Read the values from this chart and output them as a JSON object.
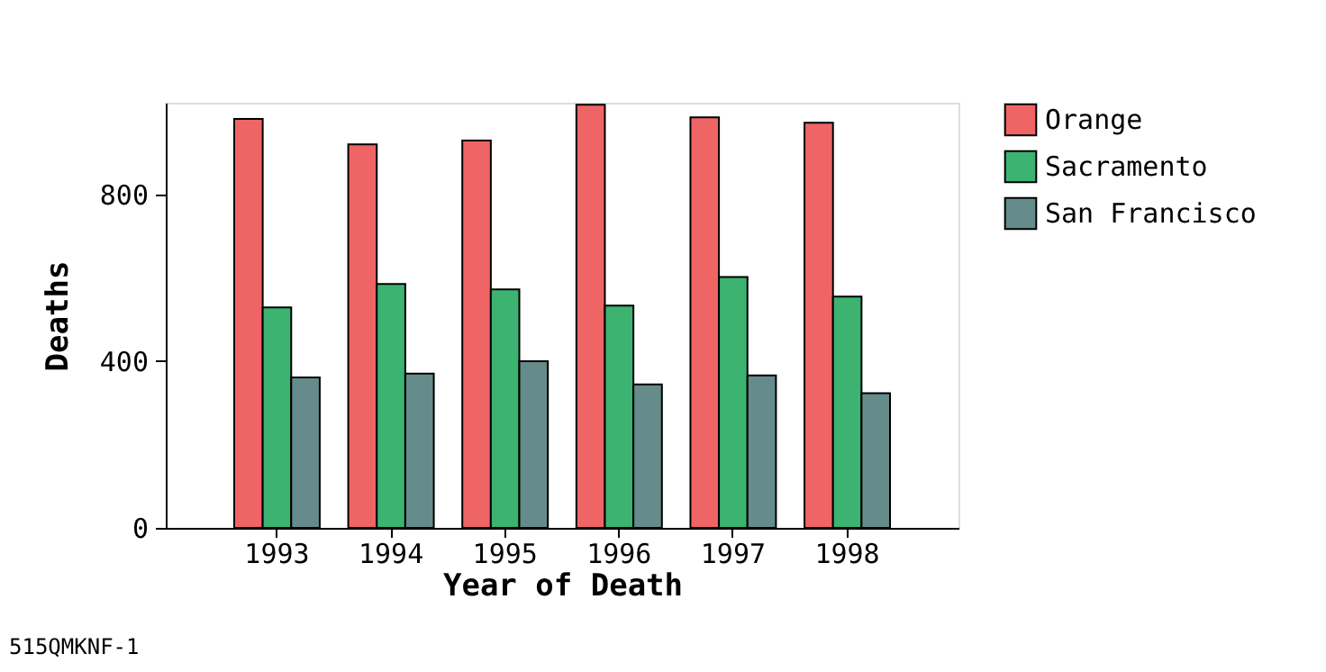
{
  "chart_data": {
    "type": "bar",
    "xlabel": "Year of Death",
    "ylabel": "Deaths",
    "categories": [
      "1993",
      "1994",
      "1995",
      "1996",
      "1997",
      "1998"
    ],
    "series": [
      {
        "name": "Orange",
        "color": "#ef6464",
        "values": [
          981,
          920,
          929,
          1015,
          985,
          972
        ]
      },
      {
        "name": "Sacramento",
        "color": "#3cb371",
        "values": [
          529,
          585,
          572,
          533,
          602,
          555
        ]
      },
      {
        "name": "San Francisco",
        "color": "#668b8b",
        "values": [
          361,
          370,
          400,
          344,
          366,
          323
        ]
      }
    ],
    "ylim": [
      0,
      1020
    ],
    "yticks": [
      0,
      400,
      800
    ],
    "grid": false,
    "legend": "top right",
    "annotations": [
      "515QMKNF-1"
    ]
  }
}
